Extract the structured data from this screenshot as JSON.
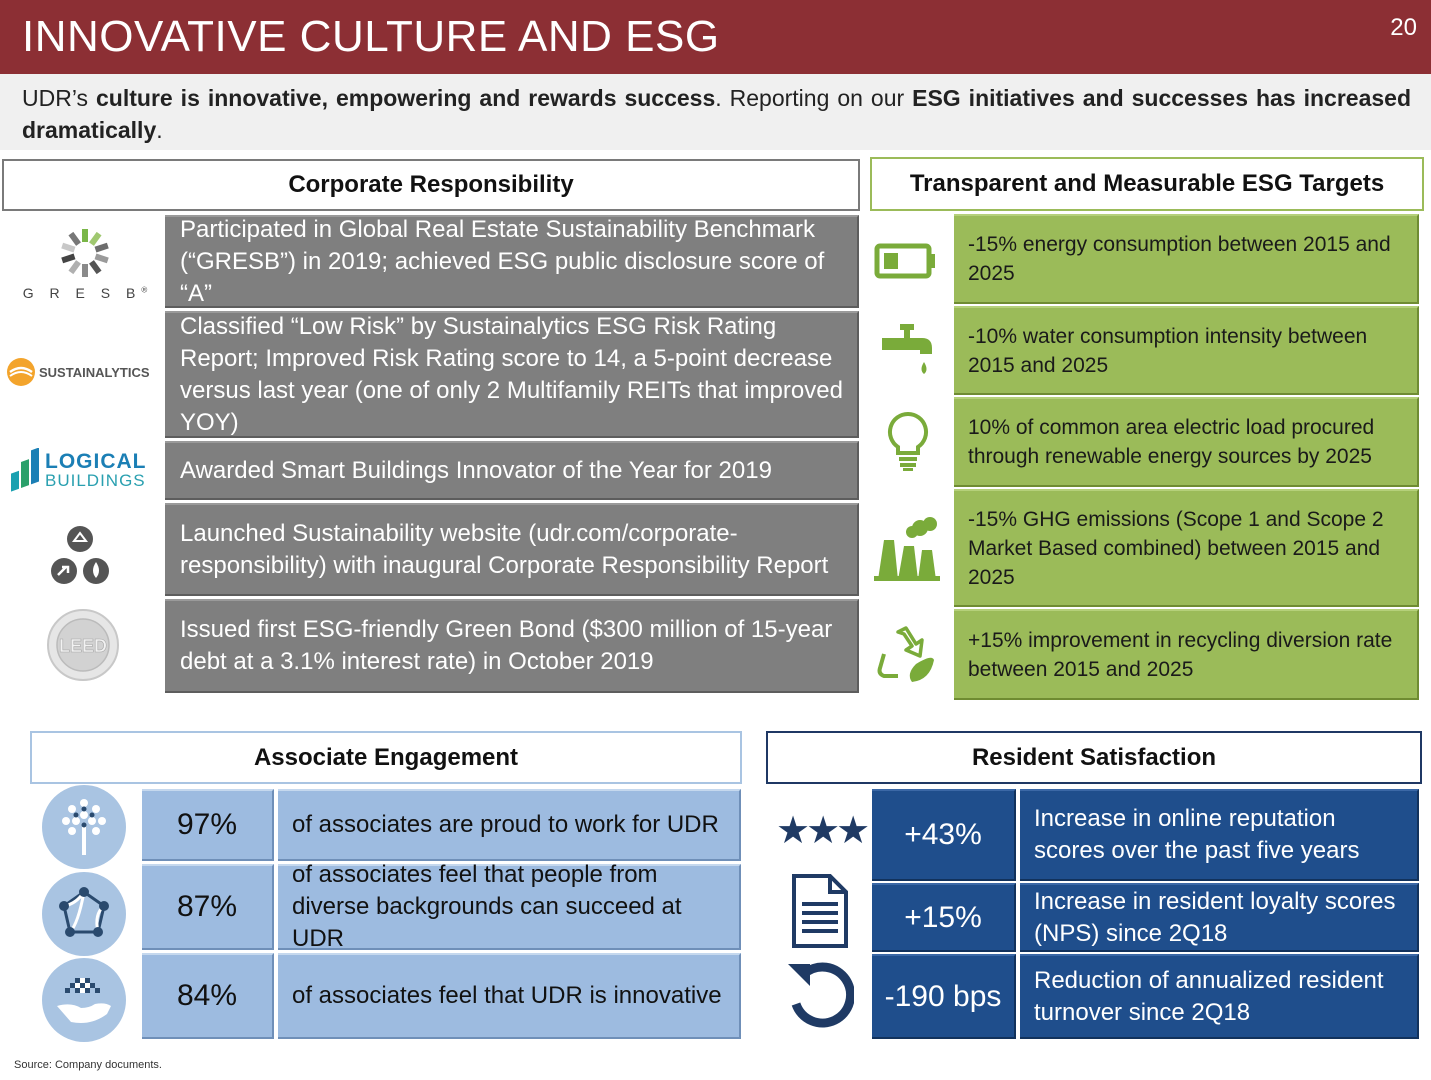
{
  "header": {
    "title": "INNOVATIVE CULTURE AND ESG",
    "page_number": "20"
  },
  "intro": {
    "p1": "UDR’s ",
    "b1": "culture is innovative, empowering and rewards success",
    "p2": ". Reporting on our ",
    "b2": "ESG initiatives and successes has increased dramatically",
    "p3": "."
  },
  "corporate": {
    "title": "Corporate  Responsibility",
    "logos": {
      "gresb": "G R E S B",
      "gresb_mark": "®",
      "sustainalytics": "SUSTAINALYTICS",
      "logical_1": "LOGICAL",
      "logical_2": "BUILDINGS",
      "leed": "LEED"
    },
    "items": [
      "Participated in Global Real Estate Sustainability Benchmark (“GRESB”) in 2019; achieved ESG public disclosure score of “A”",
      "Classified “Low Risk” by Sustainalytics ESG Risk Rating Report; Improved Risk Rating score to 14, a 5-point decrease versus last year (one of only 2 Multifamily REITs that improved YOY)",
      "Awarded Smart Buildings Innovator of the Year for 2019",
      "Launched Sustainability website (udr.com/corporate-responsibility) with inaugural Corporate Responsibility Report",
      "Issued first ESG-friendly Green Bond ($300 million of 15-year debt at a 3.1% interest rate) in October 2019"
    ]
  },
  "esg": {
    "title": "Transparent  and  Measurable  ESG  Targets",
    "items": [
      "-15% energy  consumption  between  2015 and 2025",
      "-10% water consumption intensity between 2015 and 2025",
      "10% of common area electric load procured through renewable  energy sources by 2025",
      "-15% GHG emissions (Scope  1 and Scope 2 Market Based combined)  between  2015 and 2025",
      "+15% improvement in recycling diversion rate between 2015 and 2025"
    ],
    "icons": [
      "battery-icon",
      "faucet-icon",
      "lightbulb-icon",
      "factory-icon",
      "recycle-icon"
    ]
  },
  "associate": {
    "title": "Associate  Engagement",
    "rows": [
      {
        "pct": "97%",
        "desc": "of associates are proud to work for UDR"
      },
      {
        "pct": "87%",
        "desc": "of associates feel that people from diverse backgrounds can succeed at UDR"
      },
      {
        "pct": "84%",
        "desc": "of associates feel that UDR is innovative"
      }
    ]
  },
  "resident": {
    "title": "Resident Satisfaction",
    "stars": "★★★",
    "rows": [
      {
        "value": "+43%",
        "desc": "Increase in online reputation scores over the past five years"
      },
      {
        "value": "+15%",
        "desc": "Increase in resident loyalty scores (NPS) since 2Q18"
      },
      {
        "value": "-190 bps",
        "desc": "Reduction of annualized resident turnover since 2Q18"
      }
    ]
  },
  "footer": {
    "source": "Source:  Company  documents."
  },
  "colors": {
    "header_bg": "#8c2f34",
    "corporate_box": "#7f7f7f",
    "esg_green": "#9bbb59",
    "associate_blue": "#9dbbe0",
    "resident_navy": "#1f4e8c"
  }
}
